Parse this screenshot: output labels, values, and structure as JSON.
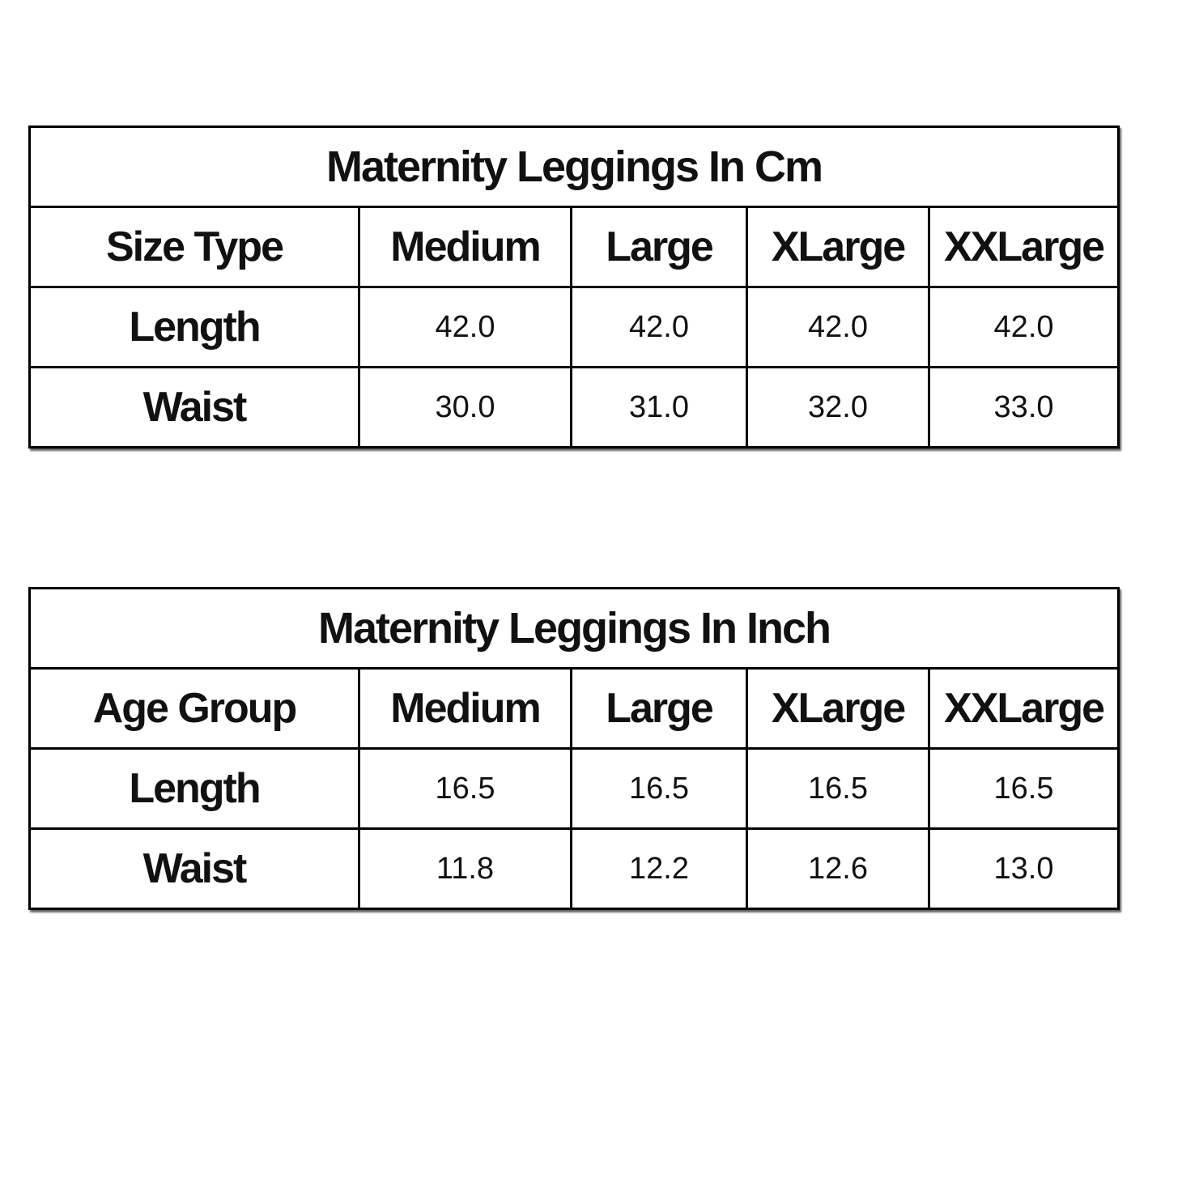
{
  "tables": [
    {
      "title": "Maternity Leggings In Cm",
      "header": [
        "Size Type",
        "Medium",
        "Large",
        "XLarge",
        "XXLarge"
      ],
      "rows": [
        [
          "Length",
          "42.0",
          "42.0",
          "42.0",
          "42.0"
        ],
        [
          "Waist",
          "30.0",
          "31.0",
          "32.0",
          "33.0"
        ]
      ]
    },
    {
      "title": "Maternity Leggings In Inch",
      "header": [
        "Age Group",
        "Medium",
        "Large",
        "XLarge",
        "XXLarge"
      ],
      "rows": [
        [
          "Length",
          "16.5",
          "16.5",
          "16.5",
          "16.5"
        ],
        [
          "Waist",
          "11.8",
          "12.2",
          "12.6",
          "13.0"
        ]
      ]
    }
  ]
}
